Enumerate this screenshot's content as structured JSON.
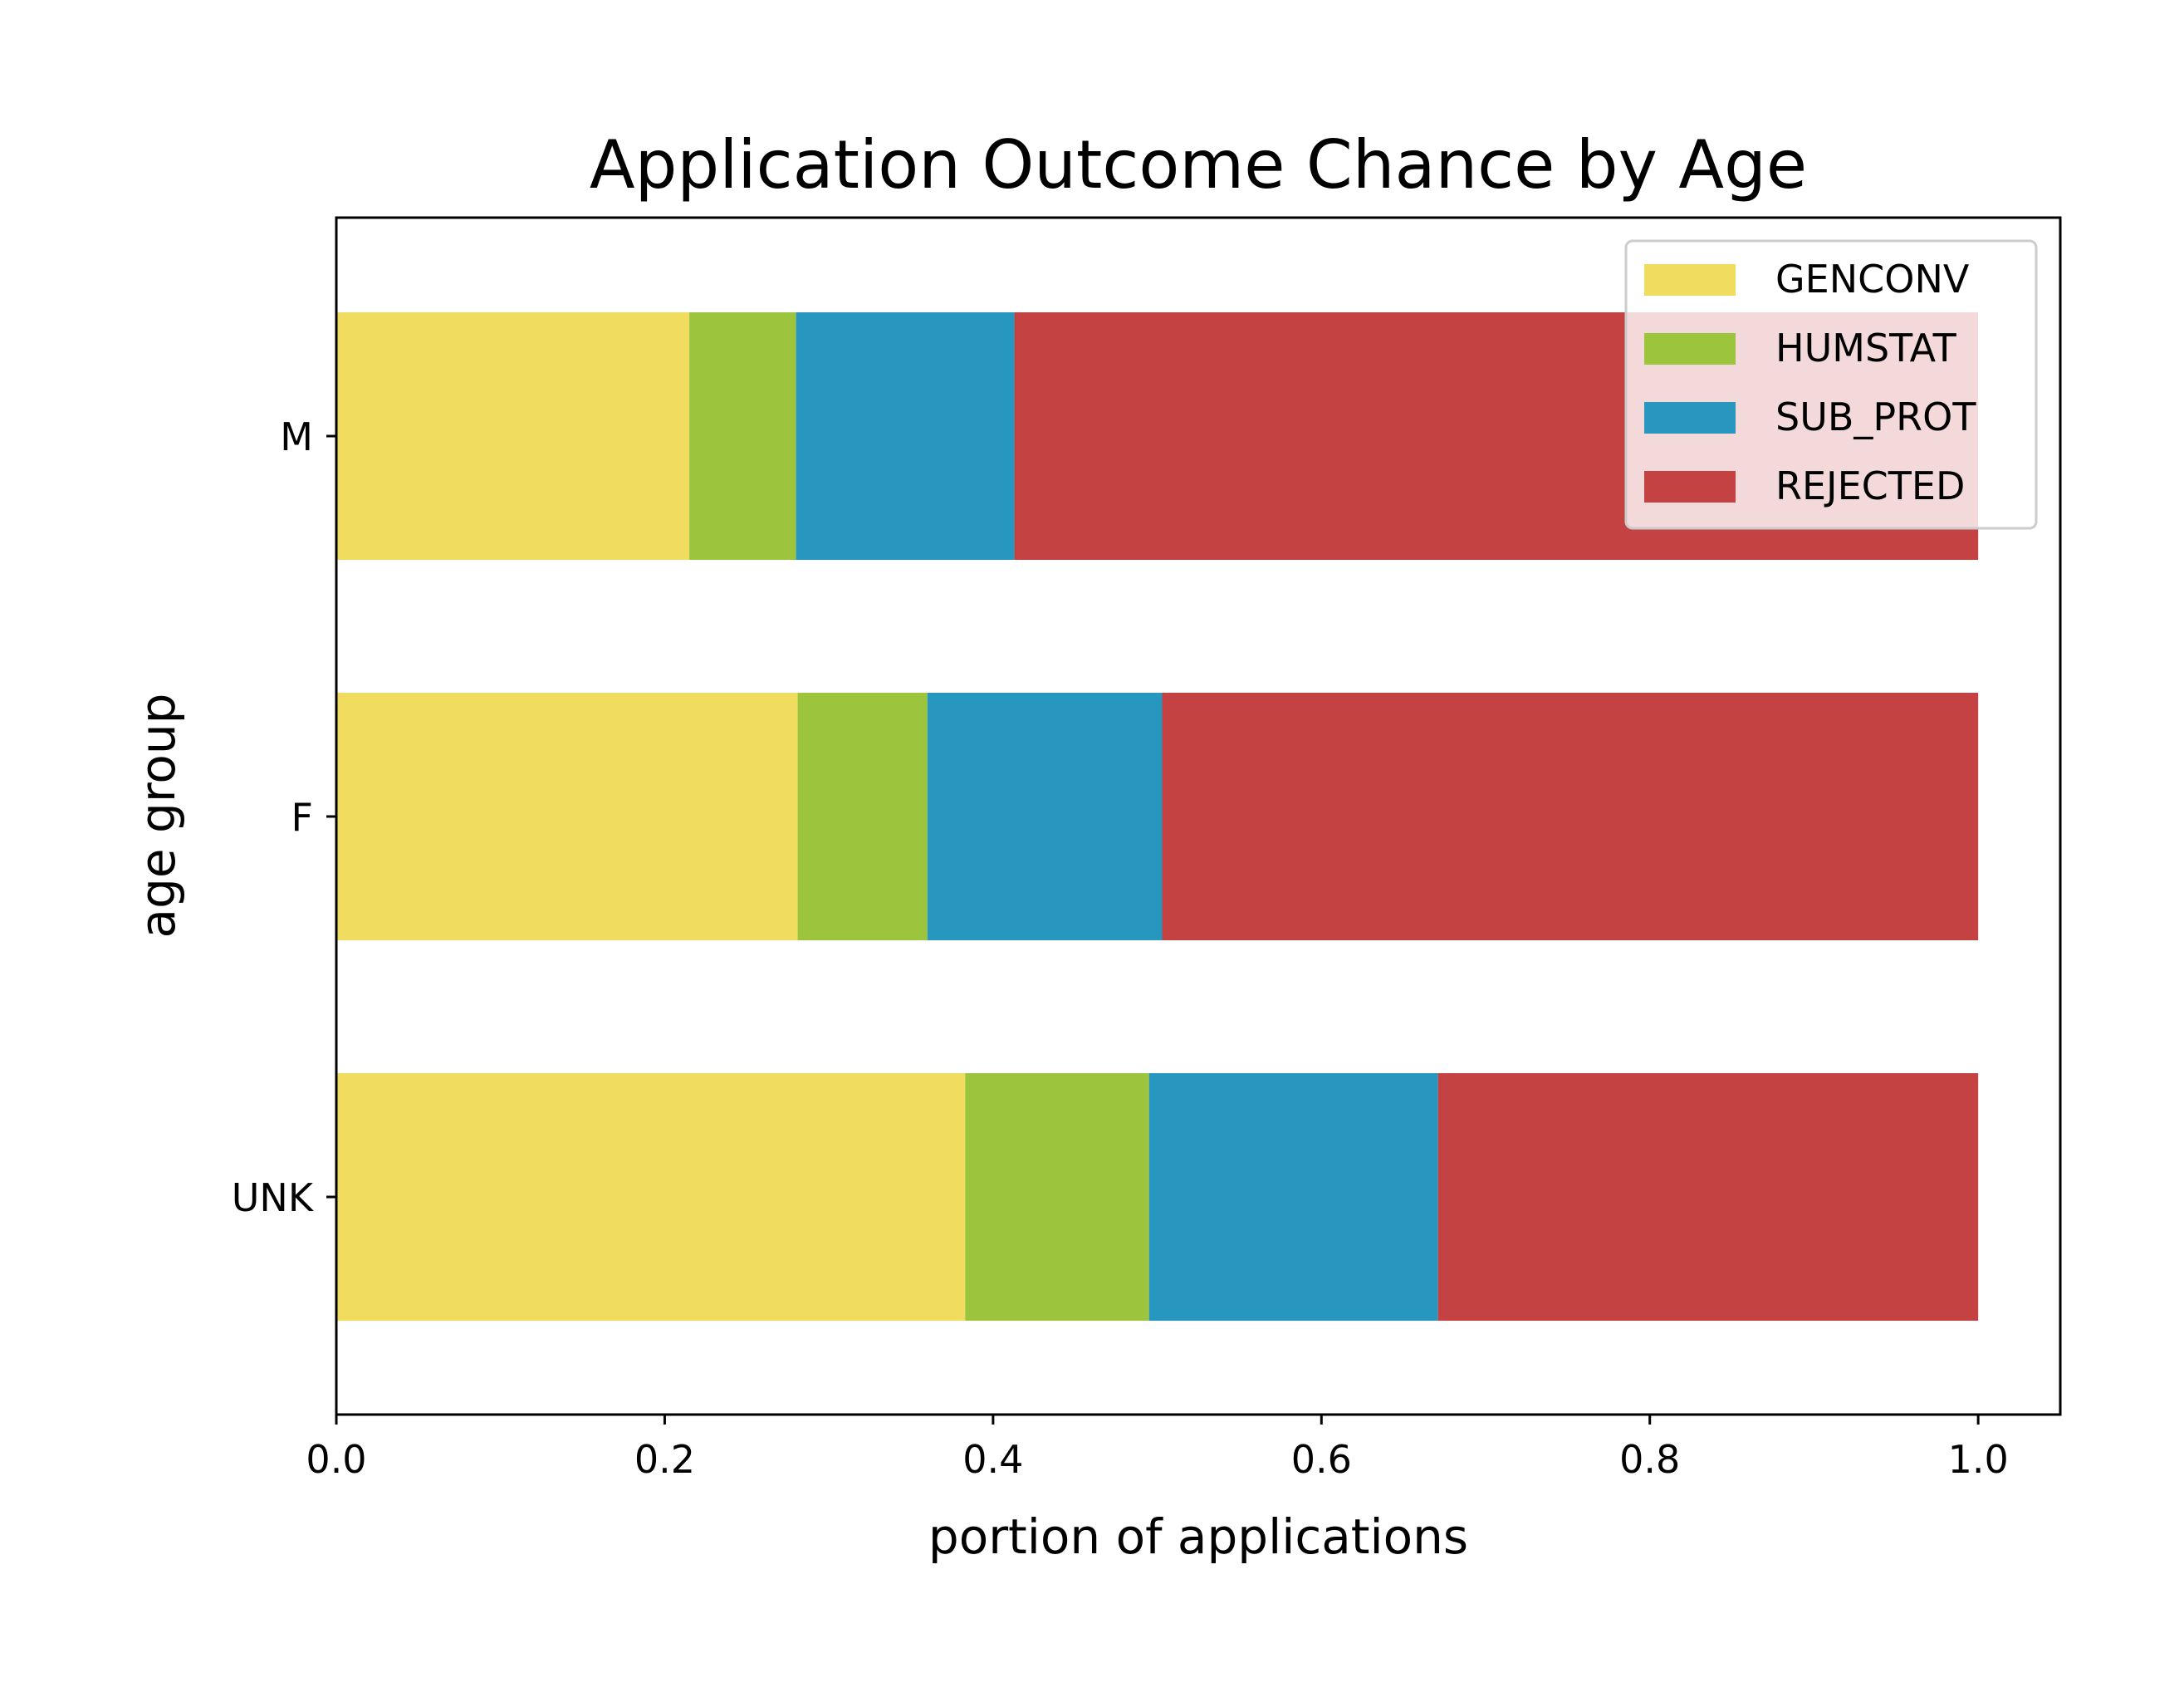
{
  "chart_data": {
    "type": "bar",
    "orientation": "horizontal",
    "stacked": true,
    "title": "Application Outcome Chance by Age",
    "xlabel": "portion of applications",
    "ylabel": "age group",
    "xlim": [
      0,
      1.05
    ],
    "xticks": [
      "0.0",
      "0.2",
      "0.4",
      "0.6",
      "0.8",
      "1.0"
    ],
    "categories": [
      "M",
      "F",
      "UNK"
    ],
    "series": [
      {
        "name": "GENCONV",
        "color": "#f0dc5e",
        "values": [
          0.215,
          0.281,
          0.383
        ]
      },
      {
        "name": "HUMSTAT",
        "color": "#9cc43d",
        "values": [
          0.065,
          0.079,
          0.112
        ]
      },
      {
        "name": "SUB_PROT",
        "color": "#2797bf",
        "values": [
          0.133,
          0.143,
          0.176
        ]
      },
      {
        "name": "REJECTED",
        "color": "#c44242",
        "values": [
          0.587,
          0.497,
          0.329
        ]
      }
    ],
    "legend_position": "top-right",
    "grid": false
  }
}
